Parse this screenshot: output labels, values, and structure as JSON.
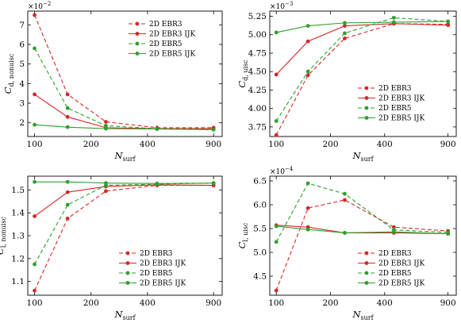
{
  "chart_data": [
    {
      "type": "line",
      "ylabel": "C",
      "ylabel_sub": "d, nonuisc",
      "xlabel": "N",
      "xlabel_sub": "surf",
      "multiplier": "×10",
      "multiplier_exp": "−2",
      "xscale": "log",
      "xlim": [
        92,
        1000
      ],
      "ylim": [
        1.3,
        7.7
      ],
      "xticks": [
        100,
        200,
        400,
        900
      ],
      "yticks": [
        2,
        3,
        4,
        5,
        6,
        7
      ],
      "legend_position": "top-right",
      "series": [
        {
          "name": "2D EBR3",
          "color": "#d62728",
          "dash": "dashed",
          "x": [
            100,
            150,
            240,
            450,
            900
          ],
          "y": [
            7.5,
            3.45,
            2.05,
            1.75,
            1.75
          ]
        },
        {
          "name": "2D EBR3 IJK",
          "color": "#d62728",
          "dash": "solid",
          "x": [
            100,
            150,
            240,
            450,
            900
          ],
          "y": [
            3.45,
            2.3,
            1.75,
            1.7,
            1.7
          ]
        },
        {
          "name": "2D EBR5",
          "color": "#2ca02c",
          "dash": "dashed",
          "x": [
            100,
            150,
            240,
            450,
            900
          ],
          "y": [
            5.8,
            2.75,
            1.85,
            1.7,
            1.65
          ]
        },
        {
          "name": "2D EBR5 IJK",
          "color": "#2ca02c",
          "dash": "solid",
          "x": [
            100,
            150,
            240,
            450,
            900
          ],
          "y": [
            1.9,
            1.78,
            1.7,
            1.68,
            1.65
          ]
        }
      ]
    },
    {
      "type": "line",
      "ylabel": "C",
      "ylabel_sub": "d, uisc",
      "xlabel": "N",
      "xlabel_sub": "surf",
      "multiplier": "×10",
      "multiplier_exp": "−3",
      "xscale": "log",
      "xlim": [
        92,
        1000
      ],
      "ylim": [
        3.62,
        5.32
      ],
      "xticks": [
        100,
        200,
        400,
        900
      ],
      "yticks": [
        3.75,
        4.0,
        4.25,
        4.5,
        4.75,
        5.0,
        5.25
      ],
      "legend_position": "bottom-right",
      "series": [
        {
          "name": "2D EBR3",
          "color": "#d62728",
          "dash": "dashed",
          "x": [
            100,
            150,
            240,
            450,
            900
          ],
          "y": [
            3.64,
            4.45,
            4.95,
            5.15,
            5.14
          ]
        },
        {
          "name": "2D EBR3 IJK",
          "color": "#d62728",
          "dash": "solid",
          "x": [
            100,
            150,
            240,
            450,
            900
          ],
          "y": [
            4.46,
            4.91,
            5.12,
            5.15,
            5.13
          ]
        },
        {
          "name": "2D EBR5",
          "color": "#2ca02c",
          "dash": "dashed",
          "x": [
            100,
            150,
            240,
            450,
            900
          ],
          "y": [
            3.83,
            4.5,
            5.02,
            5.23,
            5.18
          ]
        },
        {
          "name": "2D EBR5 IJK",
          "color": "#2ca02c",
          "dash": "solid",
          "x": [
            100,
            150,
            240,
            450,
            900
          ],
          "y": [
            5.03,
            5.12,
            5.16,
            5.17,
            5.18
          ]
        }
      ]
    },
    {
      "type": "line",
      "ylabel": "C",
      "ylabel_sub": "l, nonuisc",
      "xlabel": "N",
      "xlabel_sub": "surf",
      "multiplier": "",
      "multiplier_exp": "",
      "xscale": "log",
      "xlim": [
        92,
        1000
      ],
      "ylim": [
        1.04,
        1.56
      ],
      "xticks": [
        100,
        200,
        400,
        900
      ],
      "yticks": [
        1.1,
        1.2,
        1.3,
        1.4,
        1.5
      ],
      "legend_position": "bottom-right",
      "series": [
        {
          "name": "2D EBR3",
          "color": "#d62728",
          "dash": "dashed",
          "x": [
            100,
            150,
            240,
            450,
            900
          ],
          "y": [
            1.06,
            1.375,
            1.495,
            1.52,
            1.52
          ]
        },
        {
          "name": "2D EBR3 IJK",
          "color": "#d62728",
          "dash": "solid",
          "x": [
            100,
            150,
            240,
            450,
            900
          ],
          "y": [
            1.385,
            1.49,
            1.515,
            1.522,
            1.52
          ]
        },
        {
          "name": "2D EBR5",
          "color": "#2ca02c",
          "dash": "dashed",
          "x": [
            100,
            150,
            240,
            450,
            900
          ],
          "y": [
            1.175,
            1.435,
            1.52,
            1.525,
            1.53
          ]
        },
        {
          "name": "2D EBR5 IJK",
          "color": "#2ca02c",
          "dash": "solid",
          "x": [
            100,
            150,
            240,
            450,
            900
          ],
          "y": [
            1.535,
            1.535,
            1.53,
            1.528,
            1.53
          ]
        }
      ]
    },
    {
      "type": "line",
      "ylabel": "C",
      "ylabel_sub": "l, uisc",
      "xlabel": "N",
      "xlabel_sub": "surf",
      "multiplier": "×10",
      "multiplier_exp": "−4",
      "xscale": "log",
      "xlim": [
        92,
        1000
      ],
      "ylim": [
        4.1,
        6.6
      ],
      "xticks": [
        100,
        200,
        400,
        900
      ],
      "yticks": [
        4.5,
        5.0,
        5.5,
        6.0,
        6.5
      ],
      "legend_position": "bottom-right",
      "series": [
        {
          "name": "2D EBR3",
          "color": "#d62728",
          "dash": "dashed",
          "x": [
            100,
            150,
            240,
            450,
            900
          ],
          "y": [
            4.2,
            5.93,
            6.1,
            5.53,
            5.45
          ]
        },
        {
          "name": "2D EBR3 IJK",
          "color": "#d62728",
          "dash": "solid",
          "x": [
            100,
            150,
            240,
            450,
            900
          ],
          "y": [
            5.57,
            5.53,
            5.41,
            5.41,
            5.39
          ]
        },
        {
          "name": "2D EBR5",
          "color": "#2ca02c",
          "dash": "dashed",
          "x": [
            100,
            150,
            240,
            450,
            900
          ],
          "y": [
            5.22,
            6.45,
            6.23,
            5.47,
            5.42
          ]
        },
        {
          "name": "2D EBR5 IJK",
          "color": "#2ca02c",
          "dash": "solid",
          "x": [
            100,
            150,
            240,
            450,
            900
          ],
          "y": [
            5.55,
            5.48,
            5.41,
            5.43,
            5.39
          ]
        }
      ]
    }
  ]
}
